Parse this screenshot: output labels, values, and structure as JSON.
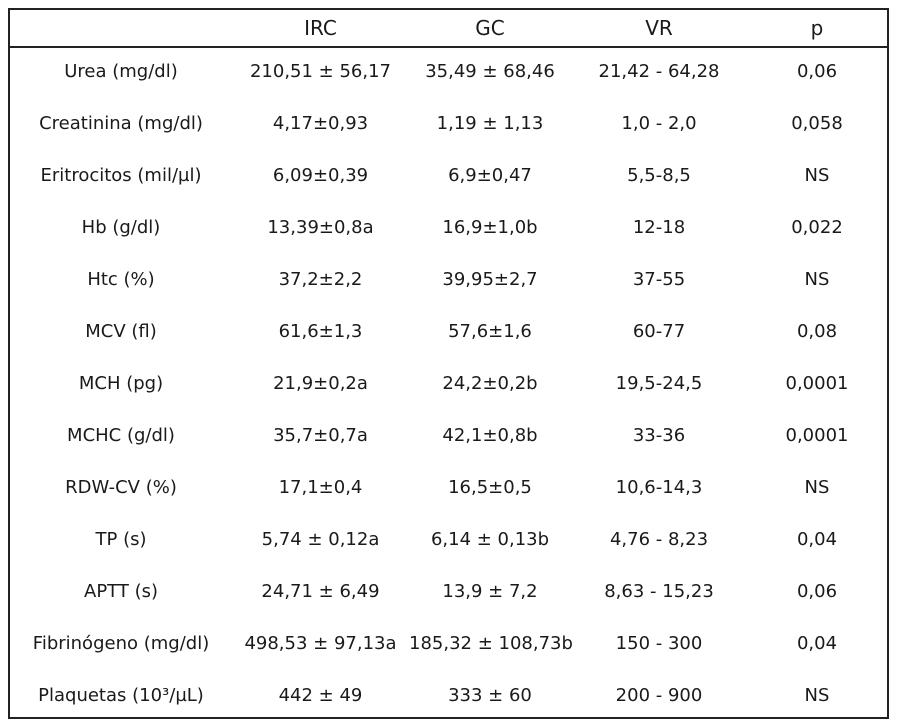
{
  "table": {
    "headers": [
      "",
      "IRC",
      "GC",
      "VR",
      "p"
    ],
    "rows": [
      [
        "Urea (mg/dl)",
        "210,51 ± 56,17",
        "35,49 ± 68,46",
        "21,42 - 64,28",
        "0,06"
      ],
      [
        "Creatinina (mg/dl)",
        "4,17±0,93",
        "1,19 ± 1,13",
        "1,0 - 2,0",
        "0,058"
      ],
      [
        "Eritrocitos (mil/µl)",
        "6,09±0,39",
        "6,9±0,47",
        "5,5-8,5",
        "NS"
      ],
      [
        "Hb (g/dl)",
        "13,39±0,8a",
        "16,9±1,0b",
        "12-18",
        "0,022"
      ],
      [
        "Htc (%)",
        "37,2±2,2",
        "39,95±2,7",
        "37-55",
        "NS"
      ],
      [
        "MCV (fl)",
        "61,6±1,3",
        "57,6±1,6",
        "60-77",
        "0,08"
      ],
      [
        "MCH (pg)",
        "21,9±0,2a",
        "24,2±0,2b",
        "19,5-24,5",
        "0,0001"
      ],
      [
        "MCHC (g/dl)",
        "35,7±0,7a",
        "42,1±0,8b",
        "33-36",
        "0,0001"
      ],
      [
        "RDW-CV (%)",
        "17,1±0,4",
        "16,5±0,5",
        "10,6-14,3",
        "NS"
      ],
      [
        "TP (s)",
        "5,74 ± 0,12a",
        "6,14 ± 0,13b",
        "4,76 - 8,23",
        "0,04"
      ],
      [
        "APTT (s)",
        "24,71 ± 6,49",
        "13,9 ± 7,2",
        "8,63 - 15,23",
        "0,06"
      ],
      [
        "Fibrinógeno (mg/dl)",
        "498,53 ± 97,13a",
        "185,32 ± 108,73b",
        "150 - 300",
        "0,04"
      ],
      [
        "Plaquetas (10³/µL)",
        "442 ± 49",
        "333 ± 60",
        "200 - 900",
        "NS"
      ]
    ]
  }
}
